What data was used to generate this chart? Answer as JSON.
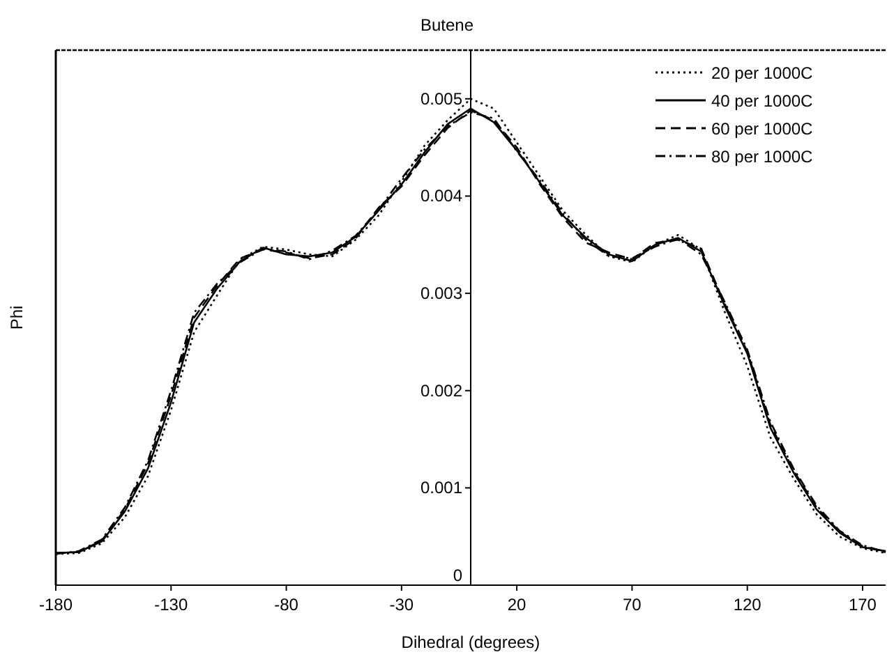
{
  "chart_data": {
    "type": "line",
    "title": "Butene",
    "xlabel": "Dihedral (degrees)",
    "ylabel": "Phi",
    "x": [
      -180,
      -170,
      -160,
      -150,
      -140,
      -130,
      -120,
      -110,
      -100,
      -90,
      -80,
      -70,
      -60,
      -50,
      -40,
      -30,
      -20,
      -10,
      0,
      10,
      20,
      30,
      40,
      50,
      60,
      70,
      80,
      90,
      100,
      110,
      120,
      130,
      140,
      150,
      160,
      170,
      180
    ],
    "series": [
      {
        "name": "20 per 1000C",
        "color": "#000000",
        "line_style": "dotted",
        "values": [
          0.00032,
          0.00033,
          0.00043,
          0.0007,
          0.00112,
          0.0018,
          0.0026,
          0.00298,
          0.00335,
          0.00348,
          0.00345,
          0.0034,
          0.00338,
          0.00355,
          0.0038,
          0.00415,
          0.00452,
          0.00478,
          0.005,
          0.0049,
          0.00455,
          0.0042,
          0.00385,
          0.0036,
          0.00338,
          0.00332,
          0.0035,
          0.0036,
          0.00345,
          0.00282,
          0.00225,
          0.00152,
          0.0011,
          0.00073,
          0.0005,
          0.00038,
          0.00033
        ]
      },
      {
        "name": "40 per 1000C",
        "color": "#000000",
        "line_style": "solid",
        "values": [
          0.00033,
          0.00034,
          0.00045,
          0.00076,
          0.0012,
          0.00188,
          0.0027,
          0.00305,
          0.00333,
          0.00347,
          0.0034,
          0.00338,
          0.00342,
          0.00358,
          0.00385,
          0.00412,
          0.00445,
          0.00474,
          0.0049,
          0.00476,
          0.00447,
          0.00414,
          0.0038,
          0.00357,
          0.0034,
          0.00333,
          0.0035,
          0.00357,
          0.00343,
          0.00288,
          0.00238,
          0.00162,
          0.00116,
          0.00078,
          0.00054,
          0.00039,
          0.00035
        ]
      },
      {
        "name": "60 per 1000C",
        "color": "#000000",
        "line_style": "dashed",
        "values": [
          0.00033,
          0.00034,
          0.00046,
          0.00078,
          0.00125,
          0.00195,
          0.00275,
          0.00308,
          0.00336,
          0.00345,
          0.00342,
          0.00336,
          0.0034,
          0.00356,
          0.00388,
          0.0041,
          0.00442,
          0.0047,
          0.00488,
          0.00478,
          0.0045,
          0.00412,
          0.00378,
          0.00352,
          0.00342,
          0.00335,
          0.00352,
          0.00355,
          0.00346,
          0.0029,
          0.0024,
          0.00165,
          0.00118,
          0.0008,
          0.00055,
          0.0004,
          0.00034
        ]
      },
      {
        "name": "80 per 1000C",
        "color": "#000000",
        "line_style": "dashdot",
        "values": [
          0.00032,
          0.00035,
          0.00047,
          0.0008,
          0.00128,
          0.002,
          0.0028,
          0.0031,
          0.00332,
          0.00346,
          0.00343,
          0.00335,
          0.00344,
          0.00359,
          0.00386,
          0.00418,
          0.00448,
          0.00472,
          0.00486,
          0.0048,
          0.00446,
          0.00416,
          0.00382,
          0.00355,
          0.00338,
          0.00336,
          0.00348,
          0.00356,
          0.0034,
          0.00292,
          0.00242,
          0.00168,
          0.0012,
          0.00082,
          0.00056,
          0.00041,
          0.00034
        ]
      }
    ],
    "xlim": [
      -180,
      180
    ],
    "xticks": [
      -180,
      -130,
      -80,
      -30,
      20,
      70,
      120,
      170
    ],
    "ylim": [
      0,
      0.0055
    ],
    "yticks": [
      0,
      0.001,
      0.002,
      0.003,
      0.004,
      0.005
    ],
    "grid": false,
    "legend": "top right",
    "marker": "none"
  }
}
